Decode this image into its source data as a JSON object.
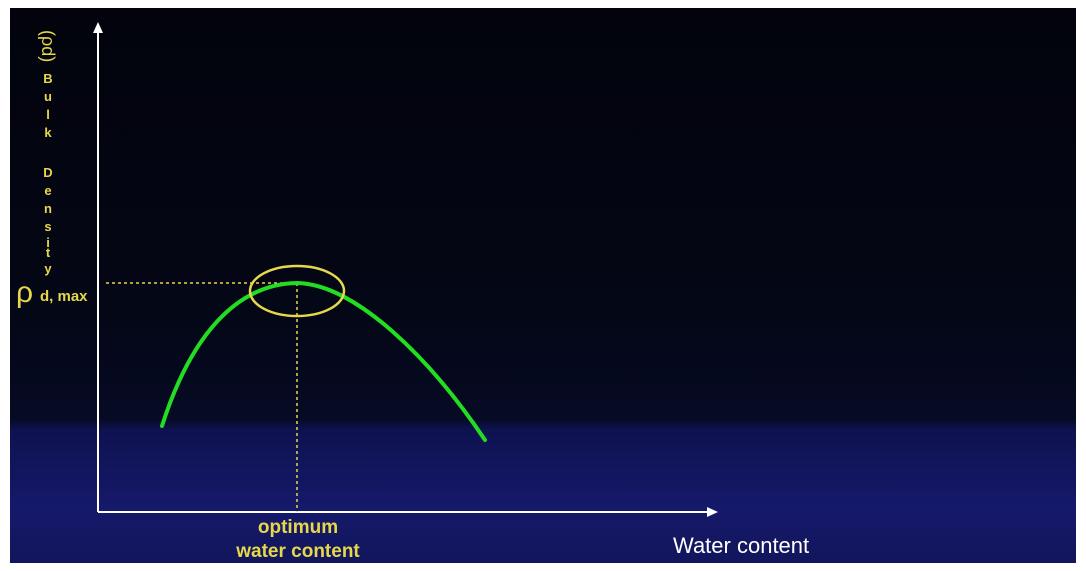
{
  "diagram": {
    "y_axis_label_letters": [
      "B",
      "u",
      "l",
      "k",
      "",
      "D",
      "e",
      "n",
      "s",
      "i",
      "t",
      "y"
    ],
    "y_axis_symbol": "(ρd)",
    "max_density_symbol": "ρ",
    "max_density_subscript": "d, max",
    "optimum_label_line1": "optimum",
    "optimum_label_line2": "water content",
    "x_axis_label": "Water content",
    "colors": {
      "background": "#05081a",
      "axis": "#ffffff",
      "curve": "#22dd22",
      "label": "#e6d84a",
      "highlight_circle": "#e6d84a"
    }
  }
}
